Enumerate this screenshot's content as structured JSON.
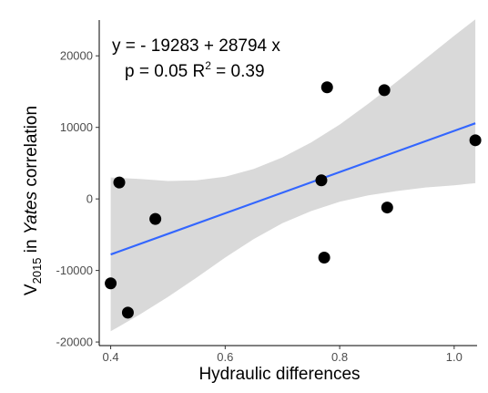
{
  "colors": {
    "point": "#000000",
    "fit_line": "#3366FF",
    "band": "#d9d9d9",
    "axis": "#000000"
  },
  "chart_data": {
    "type": "scatter",
    "xlabel": "Hydraulic differences",
    "ylabel_parts": {
      "base": "V",
      "subscript": "2015",
      "pre": " in ",
      "italic": "Yates",
      "post": " correlation"
    },
    "xlim": [
      0.38,
      1.04
    ],
    "ylim": [
      -20500,
      25000
    ],
    "x_ticks": [
      0.4,
      0.6,
      0.8,
      1.0
    ],
    "x_tick_labels": [
      "0.4",
      "0.6",
      "0.8",
      "1.0"
    ],
    "y_ticks": [
      -20000,
      -10000,
      0,
      10000,
      20000
    ],
    "y_tick_labels": [
      "-20000",
      "-10000",
      "0",
      "10000",
      "20000"
    ],
    "grid": false,
    "points": [
      {
        "x": 0.4,
        "y": -11800
      },
      {
        "x": 0.415,
        "y": 2300
      },
      {
        "x": 0.43,
        "y": -15900
      },
      {
        "x": 0.478,
        "y": -2800
      },
      {
        "x": 0.768,
        "y": 2600
      },
      {
        "x": 0.773,
        "y": -8200
      },
      {
        "x": 0.778,
        "y": 15600
      },
      {
        "x": 0.878,
        "y": 15200
      },
      {
        "x": 0.883,
        "y": -1200
      },
      {
        "x": 1.037,
        "y": 8200
      }
    ],
    "fit": {
      "intercept": -19283,
      "slope": 28794,
      "x_range": [
        0.4,
        1.037
      ]
    },
    "confidence_band": {
      "x": [
        0.4,
        0.45,
        0.5,
        0.55,
        0.6,
        0.65,
        0.7,
        0.75,
        0.8,
        0.85,
        0.9,
        0.95,
        1.0,
        1.037
      ],
      "upper": [
        3000,
        2800,
        2500,
        2600,
        3100,
        4200,
        5800,
        7900,
        10400,
        13300,
        16400,
        19600,
        22800,
        25100
      ],
      "lower": [
        -18500,
        -16200,
        -13700,
        -11000,
        -8200,
        -5600,
        -3400,
        -1700,
        -400,
        500,
        1100,
        1600,
        1900,
        2200
      ]
    },
    "annotations": {
      "equation": "y = - 19283 + 28794 x",
      "stats_p": "p = 0.05 ",
      "stats_r": "R",
      "stats_r_sup": "2",
      "stats_r_value": " = 0.39"
    }
  }
}
